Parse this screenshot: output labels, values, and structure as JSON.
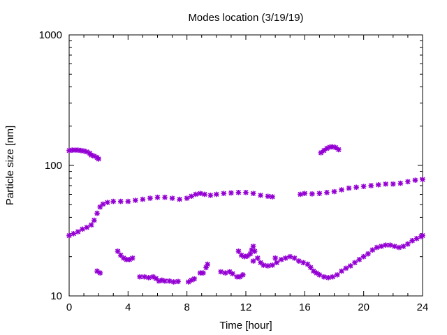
{
  "chart_data": {
    "type": "scatter",
    "title": "Modes location (3/19/19)",
    "xlabel": "Time [hour]",
    "ylabel": "Particle size [nm]",
    "xlim": [
      0,
      24
    ],
    "ylim": [
      10,
      1000
    ],
    "yscale": "log",
    "grid": false,
    "legend": "none",
    "marker_color": "#9400d3",
    "x_ticks": [
      0,
      4,
      8,
      12,
      16,
      20,
      24
    ],
    "x_tick_labels": [
      "0",
      "4",
      "8",
      "12",
      "16",
      "20",
      "24"
    ],
    "y_ticks": [
      10,
      100,
      1000
    ],
    "y_tick_labels": [
      "10",
      "100",
      "1000"
    ],
    "series": [
      {
        "points": [
          [
            0.0,
            130
          ],
          [
            0.2,
            131
          ],
          [
            0.4,
            131
          ],
          [
            0.6,
            131
          ],
          [
            0.8,
            130
          ],
          [
            1.0,
            129
          ],
          [
            1.2,
            127
          ],
          [
            1.4,
            124
          ],
          [
            1.5,
            120
          ],
          [
            1.7,
            118
          ],
          [
            1.9,
            115
          ],
          [
            2.0,
            112
          ],
          [
            17.1,
            125
          ],
          [
            17.3,
            130
          ],
          [
            17.5,
            135
          ],
          [
            17.7,
            138
          ],
          [
            17.9,
            139
          ],
          [
            18.1,
            137
          ],
          [
            18.3,
            132
          ]
        ]
      },
      {
        "points": [
          [
            0.0,
            29
          ],
          [
            0.3,
            30
          ],
          [
            0.6,
            31
          ],
          [
            0.9,
            32.5
          ],
          [
            1.2,
            33.5
          ],
          [
            1.5,
            35
          ],
          [
            1.7,
            38
          ],
          [
            1.9,
            43
          ],
          [
            2.1,
            48
          ],
          [
            2.3,
            50.5
          ],
          [
            2.6,
            52
          ],
          [
            3.0,
            53
          ],
          [
            3.5,
            53
          ],
          [
            4.0,
            53
          ],
          [
            4.5,
            54
          ],
          [
            5.0,
            55
          ],
          [
            5.5,
            56
          ],
          [
            6.0,
            57
          ],
          [
            6.5,
            57
          ],
          [
            7.0,
            56
          ],
          [
            7.5,
            55
          ],
          [
            8.0,
            56
          ],
          [
            8.3,
            58
          ],
          [
            8.6,
            60
          ],
          [
            8.9,
            61
          ],
          [
            9.2,
            60
          ],
          [
            9.6,
            59
          ],
          [
            10.0,
            60
          ],
          [
            10.5,
            61
          ],
          [
            11.0,
            61.5
          ],
          [
            11.5,
            62
          ],
          [
            12.0,
            62
          ],
          [
            12.5,
            61
          ],
          [
            13.0,
            59
          ],
          [
            13.5,
            58
          ],
          [
            13.8,
            57.5
          ],
          [
            15.7,
            60
          ],
          [
            16.0,
            61
          ],
          [
            16.5,
            60.5
          ],
          [
            17.0,
            61
          ],
          [
            17.5,
            62
          ],
          [
            18.0,
            63
          ],
          [
            18.5,
            65
          ],
          [
            19.0,
            67
          ],
          [
            19.5,
            68
          ],
          [
            20.0,
            69
          ],
          [
            20.5,
            70
          ],
          [
            21.0,
            71
          ],
          [
            21.5,
            72
          ],
          [
            22.0,
            72
          ],
          [
            22.5,
            73
          ],
          [
            23.0,
            75
          ],
          [
            23.5,
            77
          ],
          [
            24.0,
            78
          ]
        ]
      },
      {
        "points": [
          [
            1.9,
            15.5
          ],
          [
            2.1,
            15
          ],
          [
            3.3,
            22
          ],
          [
            3.5,
            20.5
          ],
          [
            3.7,
            19.5
          ],
          [
            3.9,
            19
          ],
          [
            4.1,
            19
          ],
          [
            4.3,
            19.5
          ],
          [
            4.8,
            14
          ],
          [
            5.1,
            14
          ],
          [
            5.4,
            13.8
          ],
          [
            5.7,
            14
          ],
          [
            5.9,
            13.6
          ],
          [
            6.1,
            13
          ],
          [
            6.3,
            13.2
          ],
          [
            6.5,
            13
          ],
          [
            6.8,
            13
          ],
          [
            7.1,
            12.8
          ],
          [
            7.4,
            12.9
          ],
          [
            8.1,
            12.8
          ],
          [
            8.3,
            13.2
          ],
          [
            8.5,
            13.5
          ],
          [
            8.9,
            15
          ],
          [
            9.1,
            15
          ],
          [
            9.3,
            16.5
          ],
          [
            9.4,
            17.5
          ],
          [
            10.3,
            15.3
          ],
          [
            10.6,
            15
          ],
          [
            10.9,
            15.3
          ],
          [
            11.1,
            14.8
          ],
          [
            11.4,
            14
          ],
          [
            11.6,
            14
          ],
          [
            11.8,
            14.5
          ],
          [
            11.5,
            22
          ],
          [
            11.7,
            20.5
          ],
          [
            11.9,
            20
          ],
          [
            12.1,
            20.2
          ],
          [
            12.3,
            21
          ],
          [
            12.4,
            22.5
          ],
          [
            12.5,
            24
          ],
          [
            12.6,
            22
          ],
          [
            12.8,
            19.5
          ],
          [
            13.0,
            18
          ],
          [
            13.2,
            17.2
          ],
          [
            13.5,
            17
          ],
          [
            13.8,
            17.2
          ],
          [
            14.1,
            18
          ],
          [
            14.4,
            19
          ],
          [
            14.7,
            19.5
          ],
          [
            15.0,
            20
          ],
          [
            15.3,
            19.5
          ],
          [
            15.6,
            18.5
          ],
          [
            15.9,
            18
          ],
          [
            16.2,
            17.5
          ],
          [
            16.4,
            16.5
          ],
          [
            16.6,
            15.5
          ],
          [
            16.8,
            15
          ],
          [
            12.5,
            18.5
          ],
          [
            14.0,
            19.5
          ],
          [
            17.0,
            14.5
          ],
          [
            17.3,
            14
          ],
          [
            17.6,
            13.8
          ],
          [
            17.9,
            14
          ],
          [
            18.2,
            14.5
          ],
          [
            18.5,
            15.5
          ],
          [
            18.8,
            16.3
          ],
          [
            19.1,
            17
          ],
          [
            19.4,
            18
          ],
          [
            19.7,
            19
          ],
          [
            20.0,
            20
          ],
          [
            20.3,
            21
          ],
          [
            20.6,
            22.5
          ],
          [
            20.9,
            23.5
          ],
          [
            21.2,
            24
          ],
          [
            21.5,
            24.5
          ],
          [
            21.8,
            24.5
          ],
          [
            22.1,
            24
          ],
          [
            22.4,
            23.5
          ],
          [
            22.7,
            24
          ],
          [
            23.0,
            25
          ],
          [
            23.3,
            26.5
          ],
          [
            23.6,
            27.5
          ],
          [
            23.9,
            28.5
          ],
          [
            24.0,
            29
          ]
        ]
      }
    ]
  }
}
